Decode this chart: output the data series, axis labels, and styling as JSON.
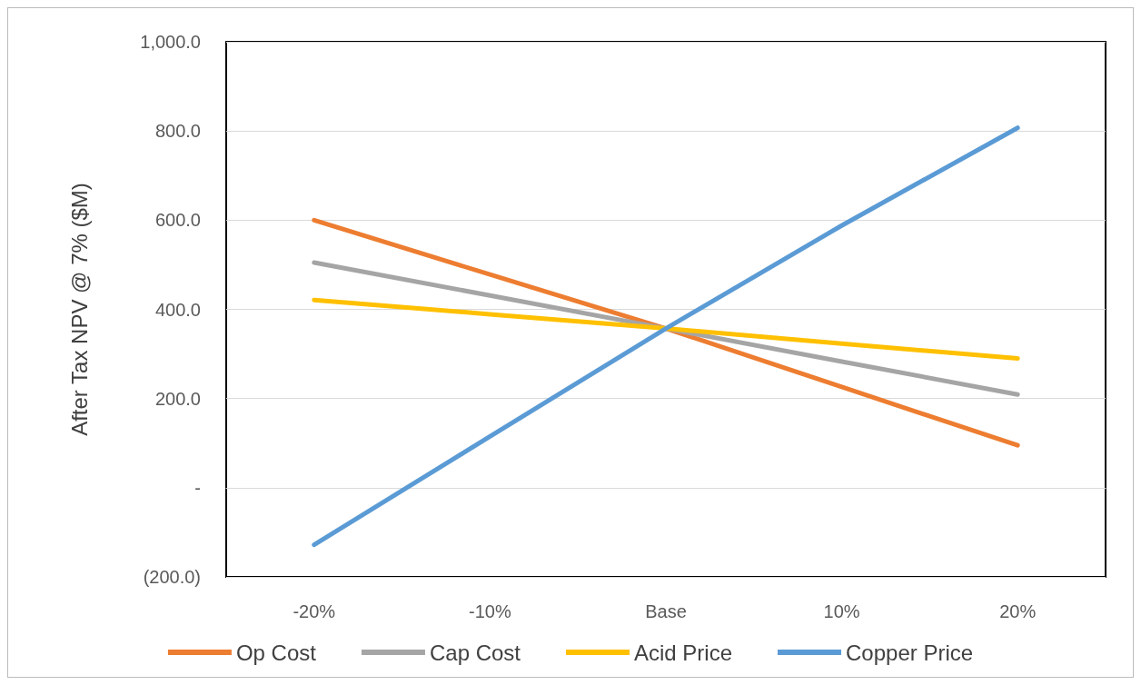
{
  "chart_data": {
    "type": "line",
    "ylabel": "After Tax NPV @ 7% ($M)",
    "categories": [
      "-20%",
      "-10%",
      "Base",
      "10%",
      "20%"
    ],
    "series": [
      {
        "name": "Op Cost",
        "color": "#ed7d31",
        "values": [
          600,
          478,
          357,
          226,
          95
        ]
      },
      {
        "name": "Cap Cost",
        "color": "#a5a5a5",
        "values": [
          505,
          431,
          357,
          283,
          209
        ]
      },
      {
        "name": "Acid Price",
        "color": "#ffc000",
        "values": [
          421,
          389,
          357,
          323,
          290
        ]
      },
      {
        "name": "Copper Price",
        "color": "#5b9bd5",
        "values": [
          -128,
          115,
          357,
          588,
          807
        ]
      }
    ],
    "ylim": [
      -200,
      1000
    ],
    "yticks": [
      {
        "value": -200,
        "label": "(200.0)"
      },
      {
        "value": 0,
        "label": "-"
      },
      {
        "value": 200,
        "label": "200.0"
      },
      {
        "value": 400,
        "label": "400.0"
      },
      {
        "value": 600,
        "label": "600.0"
      },
      {
        "value": 800,
        "label": "800.0"
      },
      {
        "value": 1000,
        "label": "1,000.0"
      }
    ],
    "grid": "y",
    "legend": "bottom",
    "marker": "none",
    "line_style": "solid"
  }
}
